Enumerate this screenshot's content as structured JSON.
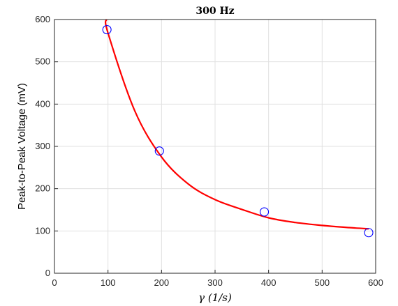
{
  "chart_data": {
    "type": "scatter",
    "title": "300 Hz",
    "xlabel": "γ (1/s)",
    "ylabel": "Peak-to-Peak Voltage (mV)",
    "xlim": [
      0,
      600
    ],
    "ylim": [
      0,
      600
    ],
    "xticks": [
      0,
      100,
      200,
      300,
      400,
      500,
      600
    ],
    "yticks": [
      0,
      100,
      200,
      300,
      400,
      500,
      600
    ],
    "grid": true,
    "series": [
      {
        "kind": "markers",
        "marker": "open-circle",
        "color": "#0000ff",
        "x": [
          98,
          196,
          392,
          587
        ],
        "y": [
          576,
          289,
          145,
          96
        ]
      },
      {
        "kind": "fit-line",
        "color": "#ff0000",
        "x": [
          97,
          100,
          150,
          200,
          250,
          300,
          350,
          400,
          450,
          500,
          550,
          587
        ],
        "y": [
          600,
          568,
          384,
          275,
          211,
          174,
          151,
          131,
          120,
          113,
          108,
          105
        ]
      }
    ]
  }
}
